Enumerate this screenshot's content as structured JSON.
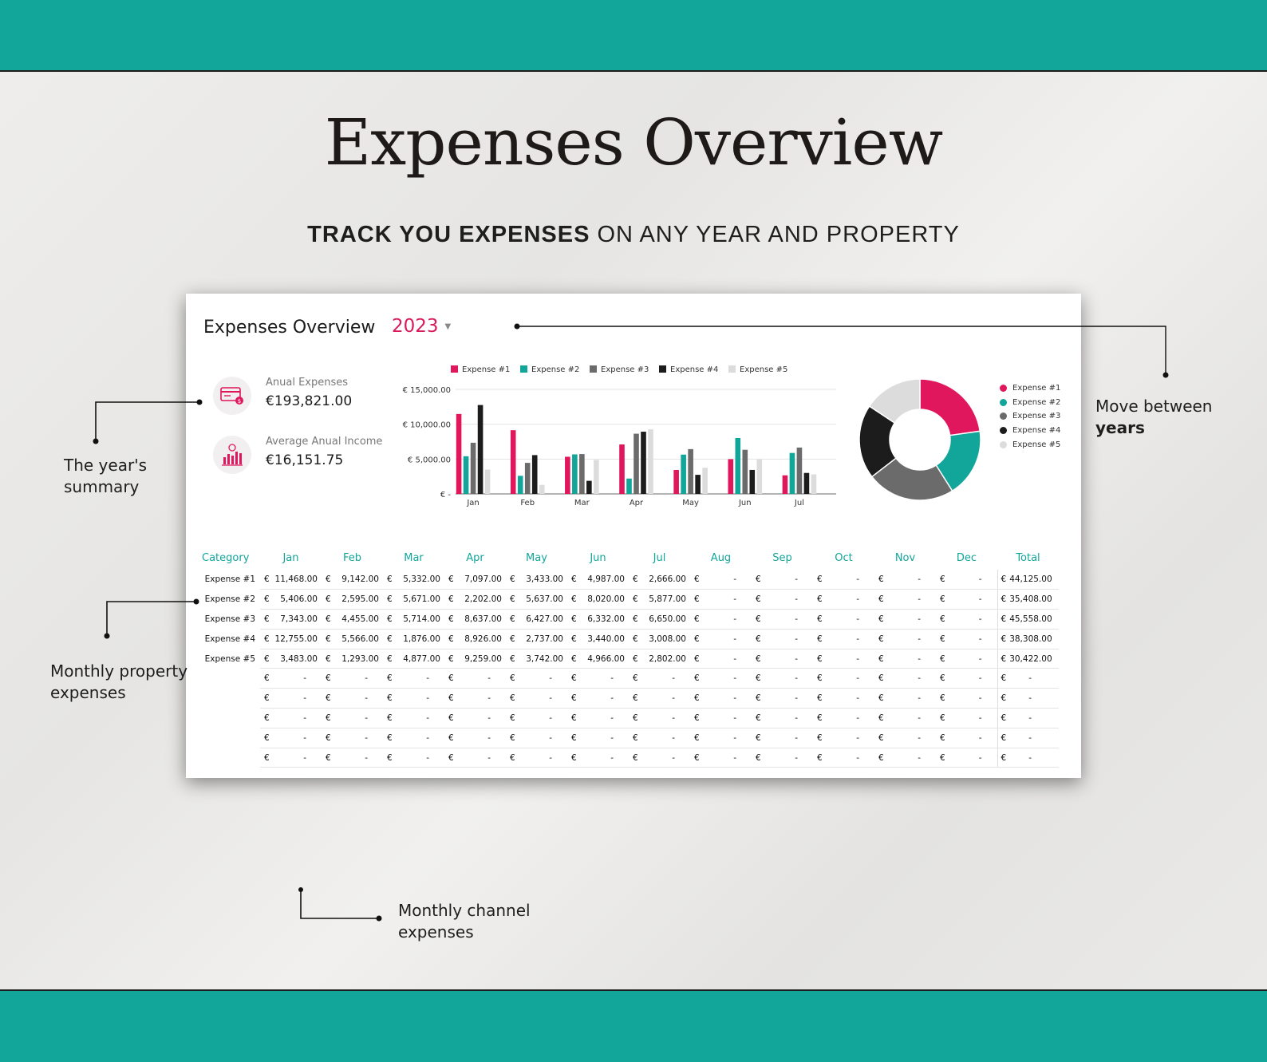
{
  "hero": {
    "title": "Expenses Overview",
    "subtitle_bold": "TRACK YOU EXPENSES",
    "subtitle_rest": " ON ANY YEAR AND PROPERTY"
  },
  "dashboard": {
    "title": "Expenses Overview",
    "year": "2023",
    "summary": [
      {
        "label": "Anual Expenses",
        "value": "€193,821.00",
        "icon": "credit-card-icon"
      },
      {
        "label": "Average Anual Income",
        "value": "€16,151.75",
        "icon": "income-chart-icon"
      }
    ]
  },
  "colors": {
    "accent": "#12a59a",
    "pink": "#d81b5b",
    "series": [
      "#e0175d",
      "#12a59a",
      "#6b6b6b",
      "#1c1c1c",
      "#dcdcdc"
    ]
  },
  "chart_data": [
    {
      "type": "bar",
      "categories": [
        "Jan",
        "Feb",
        "Mar",
        "Apr",
        "May",
        "Jun",
        "Jul"
      ],
      "series": [
        {
          "name": "Expense #1",
          "values": [
            11468,
            9142,
            5332,
            7097,
            3433,
            4987,
            2666
          ]
        },
        {
          "name": "Expense #2",
          "values": [
            5406,
            2595,
            5671,
            2202,
            5637,
            8020,
            5877
          ]
        },
        {
          "name": "Expense #3",
          "values": [
            7343,
            4455,
            5714,
            8637,
            6427,
            6332,
            6650
          ]
        },
        {
          "name": "Expense #4",
          "values": [
            12755,
            5566,
            1876,
            8926,
            2737,
            3440,
            3008
          ]
        },
        {
          "name": "Expense #5",
          "values": [
            3483,
            1293,
            4877,
            9259,
            3742,
            4966,
            2802
          ]
        }
      ],
      "yticks": [
        "€ -",
        "€ 5,000.00",
        "€ 10,000.00",
        "€ 15,000.00"
      ],
      "ylim": [
        0,
        15000
      ],
      "legend": "top",
      "grid": true
    },
    {
      "type": "pie",
      "labels": [
        "Expense #1",
        "Expense #2",
        "Expense #3",
        "Expense #4",
        "Expense #5"
      ],
      "values": [
        44125,
        35408,
        45558,
        38308,
        30422
      ],
      "donut": true,
      "legend": "right"
    }
  ],
  "table": {
    "headers": [
      "Category",
      "Jan",
      "Feb",
      "Mar",
      "Apr",
      "May",
      "Jun",
      "Jul",
      "Aug",
      "Sep",
      "Oct",
      "Nov",
      "Dec",
      "Total"
    ],
    "currency": "€",
    "empty": "-",
    "rows": [
      {
        "category": "Expense #1",
        "values": [
          "11,468.00",
          "9,142.00",
          "5,332.00",
          "7,097.00",
          "3,433.00",
          "4,987.00",
          "2,666.00",
          "-",
          "-",
          "-",
          "-",
          "-"
        ],
        "total": "44,125.00"
      },
      {
        "category": "Expense #2",
        "values": [
          "5,406.00",
          "2,595.00",
          "5,671.00",
          "2,202.00",
          "5,637.00",
          "8,020.00",
          "5,877.00",
          "-",
          "-",
          "-",
          "-",
          "-"
        ],
        "total": "35,408.00"
      },
      {
        "category": "Expense #3",
        "values": [
          "7,343.00",
          "4,455.00",
          "5,714.00",
          "8,637.00",
          "6,427.00",
          "6,332.00",
          "6,650.00",
          "-",
          "-",
          "-",
          "-",
          "-"
        ],
        "total": "45,558.00"
      },
      {
        "category": "Expense #4",
        "values": [
          "12,755.00",
          "5,566.00",
          "1,876.00",
          "8,926.00",
          "2,737.00",
          "3,440.00",
          "3,008.00",
          "-",
          "-",
          "-",
          "-",
          "-"
        ],
        "total": "38,308.00"
      },
      {
        "category": "Expense #5",
        "values": [
          "3,483.00",
          "1,293.00",
          "4,877.00",
          "9,259.00",
          "3,742.00",
          "4,966.00",
          "2,802.00",
          "-",
          "-",
          "-",
          "-",
          "-"
        ],
        "total": "30,422.00"
      },
      {
        "category": "",
        "values": [
          "-",
          "-",
          "-",
          "-",
          "-",
          "-",
          "-",
          "-",
          "-",
          "-",
          "-",
          "-"
        ],
        "total": "-"
      },
      {
        "category": "",
        "values": [
          "-",
          "-",
          "-",
          "-",
          "-",
          "-",
          "-",
          "-",
          "-",
          "-",
          "-",
          "-"
        ],
        "total": "-"
      },
      {
        "category": "",
        "values": [
          "-",
          "-",
          "-",
          "-",
          "-",
          "-",
          "-",
          "-",
          "-",
          "-",
          "-",
          "-"
        ],
        "total": "-"
      },
      {
        "category": "",
        "values": [
          "-",
          "-",
          "-",
          "-",
          "-",
          "-",
          "-",
          "-",
          "-",
          "-",
          "-",
          "-"
        ],
        "total": "-"
      },
      {
        "category": "",
        "values": [
          "-",
          "-",
          "-",
          "-",
          "-",
          "-",
          "-",
          "-",
          "-",
          "-",
          "-",
          "-"
        ],
        "total": "-"
      }
    ]
  },
  "callouts": {
    "summary": [
      "The year's",
      "summary"
    ],
    "years_line1": "Move between",
    "years_line2": "years",
    "property": [
      "Monthly property",
      "expenses"
    ],
    "channel": [
      "Monthly channel",
      "expenses"
    ]
  }
}
